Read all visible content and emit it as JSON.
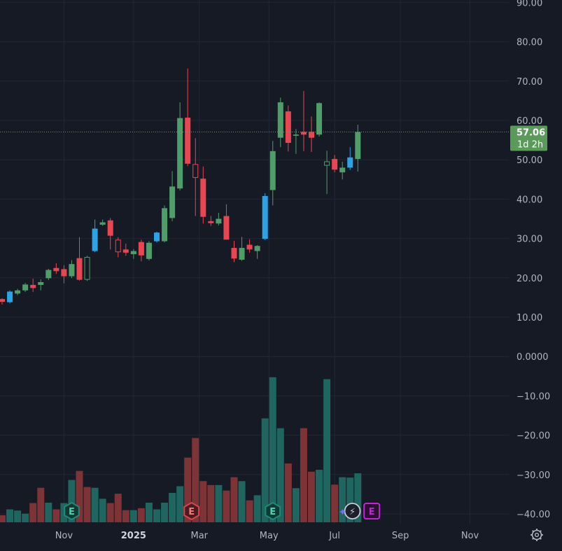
{
  "chart_data": {
    "type": "candlestick",
    "y_axis": {
      "ticks": [
        {
          "value": 90,
          "label": "90.00"
        },
        {
          "value": 80,
          "label": "80.00"
        },
        {
          "value": 70,
          "label": "70.00"
        },
        {
          "value": 60,
          "label": "60.00"
        },
        {
          "value": 50,
          "label": "50.00"
        },
        {
          "value": 40,
          "label": "40.00"
        },
        {
          "value": 30,
          "label": "30.00"
        },
        {
          "value": 20,
          "label": "20.00"
        },
        {
          "value": 10,
          "label": "10.00"
        },
        {
          "value": 0,
          "label": "0.0000"
        },
        {
          "value": -10,
          "label": "−10.00"
        },
        {
          "value": -20,
          "label": "−20.00"
        },
        {
          "value": -30,
          "label": "−30.00"
        },
        {
          "value": -40,
          "label": "−40.00"
        }
      ],
      "range": [
        -42.5,
        90
      ]
    },
    "x_axis": {
      "labels": [
        {
          "label": "Sep",
          "week": -3,
          "bold": false
        },
        {
          "label": "Nov",
          "week": 8,
          "bold": false
        },
        {
          "label": "2025",
          "week": 17,
          "bold": true
        },
        {
          "label": "Mar",
          "week": 25.5,
          "bold": false
        },
        {
          "label": "May",
          "week": 34.5,
          "bold": false
        },
        {
          "label": "Jul",
          "week": 43,
          "bold": false
        },
        {
          "label": "Sep",
          "week": 51.5,
          "bold": false
        },
        {
          "label": "Nov",
          "week": 60.5,
          "bold": false
        }
      ]
    },
    "candles": [
      {
        "o": 13.9,
        "h": 14.8,
        "l": 13.2,
        "c": 14.6,
        "color": "red"
      },
      {
        "o": 13.8,
        "h": 16.8,
        "l": 13.5,
        "c": 16.5,
        "color": "blue"
      },
      {
        "o": 16.0,
        "h": 17.2,
        "l": 15.6,
        "c": 16.8,
        "color": "green"
      },
      {
        "o": 16.8,
        "h": 18.7,
        "l": 16.4,
        "c": 18.3,
        "color": "green"
      },
      {
        "o": 18.2,
        "h": 19.8,
        "l": 16.4,
        "c": 17.4,
        "color": "red"
      },
      {
        "o": 18.2,
        "h": 19.6,
        "l": 16.8,
        "c": 18.9,
        "color": "green"
      },
      {
        "o": 19.9,
        "h": 22.3,
        "l": 19.4,
        "c": 22.0,
        "color": "green"
      },
      {
        "o": 22.5,
        "h": 23.7,
        "l": 21.0,
        "c": 21.7,
        "color": "red"
      },
      {
        "o": 22.2,
        "h": 23.2,
        "l": 18.6,
        "c": 20.4,
        "color": "red"
      },
      {
        "o": 20.4,
        "h": 24.5,
        "l": 19.9,
        "c": 23.5,
        "color": "green"
      },
      {
        "o": 25.0,
        "h": 30.3,
        "l": 19.3,
        "c": 19.5,
        "color": "red"
      },
      {
        "o": 19.5,
        "h": 25.6,
        "l": 19.2,
        "c": 25.3,
        "color": "green",
        "hollow": true
      },
      {
        "o": 26.8,
        "h": 34.8,
        "l": 26.5,
        "c": 32.5,
        "color": "blue"
      },
      {
        "o": 33.5,
        "h": 34.8,
        "l": 33.2,
        "c": 34.1,
        "color": "green"
      },
      {
        "o": 34.6,
        "h": 35.2,
        "l": 27.2,
        "c": 30.7,
        "color": "red"
      },
      {
        "o": 29.7,
        "h": 30.3,
        "l": 25.2,
        "c": 26.5,
        "color": "red",
        "hollow": true
      },
      {
        "o": 27.2,
        "h": 28.7,
        "l": 25.6,
        "c": 26.4,
        "color": "red"
      },
      {
        "o": 26.0,
        "h": 27.3,
        "l": 24.8,
        "c": 26.8,
        "color": "green"
      },
      {
        "o": 29.1,
        "h": 29.7,
        "l": 24.2,
        "c": 25.7,
        "color": "red"
      },
      {
        "o": 24.8,
        "h": 29.3,
        "l": 24.4,
        "c": 28.9,
        "color": "green"
      },
      {
        "o": 29.3,
        "h": 31.7,
        "l": 29.0,
        "c": 31.5,
        "color": "blue"
      },
      {
        "o": 29.3,
        "h": 38.4,
        "l": 29.0,
        "c": 37.7,
        "color": "green"
      },
      {
        "o": 35.2,
        "h": 47.1,
        "l": 34.4,
        "c": 43.2,
        "color": "green"
      },
      {
        "o": 42.7,
        "h": 64.6,
        "l": 42.2,
        "c": 60.6,
        "color": "green"
      },
      {
        "o": 60.7,
        "h": 73.2,
        "l": 48.4,
        "c": 49.0,
        "color": "red"
      },
      {
        "o": 48.9,
        "h": 55.5,
        "l": 35.7,
        "c": 45.4,
        "color": "red",
        "hollow": true
      },
      {
        "o": 45.2,
        "h": 48.3,
        "l": 33.8,
        "c": 35.5,
        "color": "red"
      },
      {
        "o": 34.4,
        "h": 35.7,
        "l": 33.2,
        "c": 33.9,
        "color": "red"
      },
      {
        "o": 33.8,
        "h": 36.5,
        "l": 33.3,
        "c": 35.0,
        "color": "green"
      },
      {
        "o": 35.7,
        "h": 38.7,
        "l": 29.7,
        "c": 29.7,
        "color": "red"
      },
      {
        "o": 27.6,
        "h": 29.4,
        "l": 24.0,
        "c": 24.9,
        "color": "red"
      },
      {
        "o": 24.6,
        "h": 30.4,
        "l": 24.3,
        "c": 27.6,
        "color": "green"
      },
      {
        "o": 28.4,
        "h": 29.8,
        "l": 26.4,
        "c": 27.2,
        "color": "red"
      },
      {
        "o": 26.8,
        "h": 28.3,
        "l": 24.8,
        "c": 28.1,
        "color": "green"
      },
      {
        "o": 29.9,
        "h": 41.5,
        "l": 29.6,
        "c": 40.8,
        "color": "blue"
      },
      {
        "o": 42.3,
        "h": 54.8,
        "l": 38.4,
        "c": 52.2,
        "color": "green"
      },
      {
        "o": 55.6,
        "h": 65.8,
        "l": 53.2,
        "c": 64.6,
        "color": "green"
      },
      {
        "o": 62.3,
        "h": 63.8,
        "l": 52.1,
        "c": 54.3,
        "color": "red"
      },
      {
        "o": 56.4,
        "h": 57.8,
        "l": 51.5,
        "c": 56.1,
        "color": "green"
      },
      {
        "o": 57.1,
        "h": 67.5,
        "l": 52.2,
        "c": 56.4,
        "color": "red"
      },
      {
        "o": 57.1,
        "h": 61.0,
        "l": 52.0,
        "c": 55.6,
        "color": "red"
      },
      {
        "o": 56.4,
        "h": 64.6,
        "l": 55.9,
        "c": 64.4,
        "color": "green"
      },
      {
        "o": 48.5,
        "h": 52.3,
        "l": 41.3,
        "c": 49.6,
        "color": "green",
        "hollow": true
      },
      {
        "o": 50.2,
        "h": 51.2,
        "l": 46.8,
        "c": 47.5,
        "color": "red"
      },
      {
        "o": 46.8,
        "h": 49.5,
        "l": 45.0,
        "c": 48.0,
        "color": "green"
      },
      {
        "o": 48.0,
        "h": 53.2,
        "l": 47.4,
        "c": 50.6,
        "color": "blue"
      },
      {
        "o": 50.2,
        "h": 58.9,
        "l": 47.0,
        "c": 57.06,
        "color": "green"
      }
    ],
    "volume": {
      "unit_note": "",
      "bars": [
        {
          "v": 1.8,
          "color": "red"
        },
        {
          "v": 3.3,
          "color": "teal"
        },
        {
          "v": 3.0,
          "color": "teal"
        },
        {
          "v": 2.2,
          "color": "teal"
        },
        {
          "v": 4.9,
          "color": "red"
        },
        {
          "v": 8.8,
          "color": "red"
        },
        {
          "v": 5.0,
          "color": "teal"
        },
        {
          "v": 3.3,
          "color": "red"
        },
        {
          "v": 4.9,
          "color": "teal"
        },
        {
          "v": 10.8,
          "color": "teal"
        },
        {
          "v": 13.1,
          "color": "red"
        },
        {
          "v": 9.0,
          "color": "red"
        },
        {
          "v": 8.8,
          "color": "teal"
        },
        {
          "v": 6.0,
          "color": "teal"
        },
        {
          "v": 4.9,
          "color": "red"
        },
        {
          "v": 7.3,
          "color": "red"
        },
        {
          "v": 3.1,
          "color": "red"
        },
        {
          "v": 3.1,
          "color": "teal"
        },
        {
          "v": 3.6,
          "color": "red"
        },
        {
          "v": 5.0,
          "color": "teal"
        },
        {
          "v": 3.3,
          "color": "teal"
        },
        {
          "v": 5.0,
          "color": "teal"
        },
        {
          "v": 7.5,
          "color": "teal"
        },
        {
          "v": 9.2,
          "color": "teal"
        },
        {
          "v": 16.5,
          "color": "red"
        },
        {
          "v": 21.5,
          "color": "red"
        },
        {
          "v": 10.5,
          "color": "red"
        },
        {
          "v": 9.5,
          "color": "red"
        },
        {
          "v": 9.5,
          "color": "teal"
        },
        {
          "v": 8.1,
          "color": "red"
        },
        {
          "v": 11.5,
          "color": "red"
        },
        {
          "v": 10.5,
          "color": "teal"
        },
        {
          "v": 5.6,
          "color": "red"
        },
        {
          "v": 6.9,
          "color": "teal"
        },
        {
          "v": 26.5,
          "color": "teal"
        },
        {
          "v": 37.0,
          "color": "teal"
        },
        {
          "v": 24.0,
          "color": "teal"
        },
        {
          "v": 15.0,
          "color": "red"
        },
        {
          "v": 8.7,
          "color": "teal"
        },
        {
          "v": 24.0,
          "color": "red"
        },
        {
          "v": 12.9,
          "color": "red"
        },
        {
          "v": 13.4,
          "color": "teal"
        },
        {
          "v": 36.5,
          "color": "teal"
        },
        {
          "v": 9.6,
          "color": "red"
        },
        {
          "v": 11.5,
          "color": "teal"
        },
        {
          "v": 11.4,
          "color": "teal"
        },
        {
          "v": 12.5,
          "color": "teal"
        }
      ]
    },
    "last_price": {
      "label": "57.06",
      "countdown": "1d 2h",
      "value": 57.06
    },
    "event_markers": [
      {
        "type": "earnings",
        "glyph": "E",
        "week": 9,
        "style": "teal"
      },
      {
        "type": "earnings",
        "glyph": "E",
        "week": 24.5,
        "style": "red"
      },
      {
        "type": "earnings",
        "glyph": "E",
        "week": 35,
        "style": "teal"
      },
      {
        "type": "split-dividend",
        "glyph": "⚡",
        "week": 45.3,
        "style": "dark"
      },
      {
        "type": "earnings",
        "glyph": "E",
        "week": 47.8,
        "style": "purple"
      }
    ],
    "grid": true,
    "colors": {
      "background": "#161a25",
      "grid": "#232733",
      "axis_text": "#b2b5be",
      "up": "#4f9e6a",
      "down": "#e94652",
      "blue": "#2ba3e6",
      "vol_teal": "#1f6660",
      "vol_red": "#7e3336",
      "last_price_bg": "#5b9b59",
      "purple": "#c026d3"
    }
  }
}
